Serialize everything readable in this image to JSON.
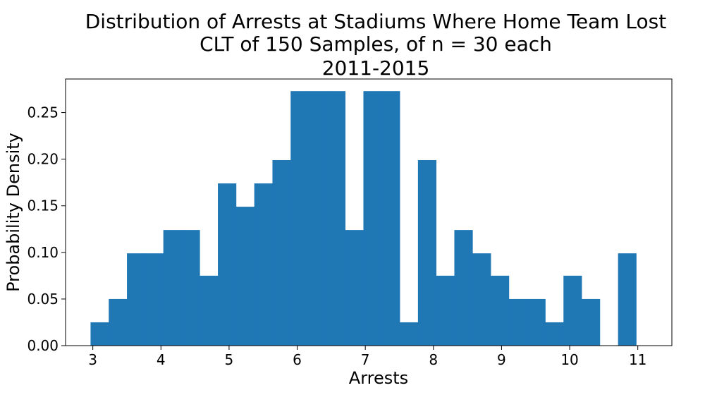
{
  "chart_data": {
    "type": "bar",
    "subtype": "histogram",
    "title_lines": [
      "Distribution of Arrests at Stadiums Where Home Team Lost",
      "CLT of 150 Samples, of n = 30 each",
      "2011-2015"
    ],
    "xlabel": "Arrests",
    "ylabel": "Probability Density",
    "xlim": [
      2.6,
      11.5
    ],
    "ylim": [
      0.0,
      0.286
    ],
    "xticks": [
      3,
      4,
      5,
      6,
      7,
      8,
      9,
      10,
      11
    ],
    "xtick_labels": [
      "3",
      "4",
      "5",
      "6",
      "7",
      "8",
      "9",
      "10",
      "11"
    ],
    "yticks": [
      0.0,
      0.05,
      0.1,
      0.15,
      0.2,
      0.25
    ],
    "ytick_labels": [
      "0.00",
      "0.05",
      "0.10",
      "0.15",
      "0.20",
      "0.25"
    ],
    "grid": false,
    "bar_color": "#1f77b4",
    "bins": [
      {
        "x0": 2.967,
        "x1": 3.234,
        "density": 0.025
      },
      {
        "x0": 3.234,
        "x1": 3.501,
        "density": 0.05
      },
      {
        "x0": 3.501,
        "x1": 3.768,
        "density": 0.099
      },
      {
        "x0": 3.768,
        "x1": 4.035,
        "density": 0.099
      },
      {
        "x0": 4.035,
        "x1": 4.302,
        "density": 0.124
      },
      {
        "x0": 4.302,
        "x1": 4.569,
        "density": 0.124
      },
      {
        "x0": 4.569,
        "x1": 4.836,
        "density": 0.075
      },
      {
        "x0": 4.836,
        "x1": 5.103,
        "density": 0.174
      },
      {
        "x0": 5.103,
        "x1": 5.37,
        "density": 0.149
      },
      {
        "x0": 5.37,
        "x1": 5.637,
        "density": 0.174
      },
      {
        "x0": 5.637,
        "x1": 5.904,
        "density": 0.199
      },
      {
        "x0": 5.904,
        "x1": 6.171,
        "density": 0.273
      },
      {
        "x0": 6.171,
        "x1": 6.438,
        "density": 0.273
      },
      {
        "x0": 6.438,
        "x1": 6.705,
        "density": 0.273
      },
      {
        "x0": 6.705,
        "x1": 6.972,
        "density": 0.124
      },
      {
        "x0": 6.972,
        "x1": 7.239,
        "density": 0.273
      },
      {
        "x0": 7.239,
        "x1": 7.506,
        "density": 0.273
      },
      {
        "x0": 7.506,
        "x1": 7.773,
        "density": 0.025
      },
      {
        "x0": 7.773,
        "x1": 8.04,
        "density": 0.199
      },
      {
        "x0": 8.04,
        "x1": 8.307,
        "density": 0.075
      },
      {
        "x0": 8.307,
        "x1": 8.574,
        "density": 0.124
      },
      {
        "x0": 8.574,
        "x1": 8.841,
        "density": 0.099
      },
      {
        "x0": 8.841,
        "x1": 9.108,
        "density": 0.075
      },
      {
        "x0": 9.108,
        "x1": 9.375,
        "density": 0.05
      },
      {
        "x0": 9.375,
        "x1": 9.642,
        "density": 0.05
      },
      {
        "x0": 9.642,
        "x1": 9.909,
        "density": 0.025
      },
      {
        "x0": 9.909,
        "x1": 10.176,
        "density": 0.075
      },
      {
        "x0": 10.176,
        "x1": 10.443,
        "density": 0.05
      },
      {
        "x0": 10.443,
        "x1": 10.71,
        "density": 0.0
      },
      {
        "x0": 10.71,
        "x1": 10.977,
        "density": 0.099
      }
    ]
  }
}
